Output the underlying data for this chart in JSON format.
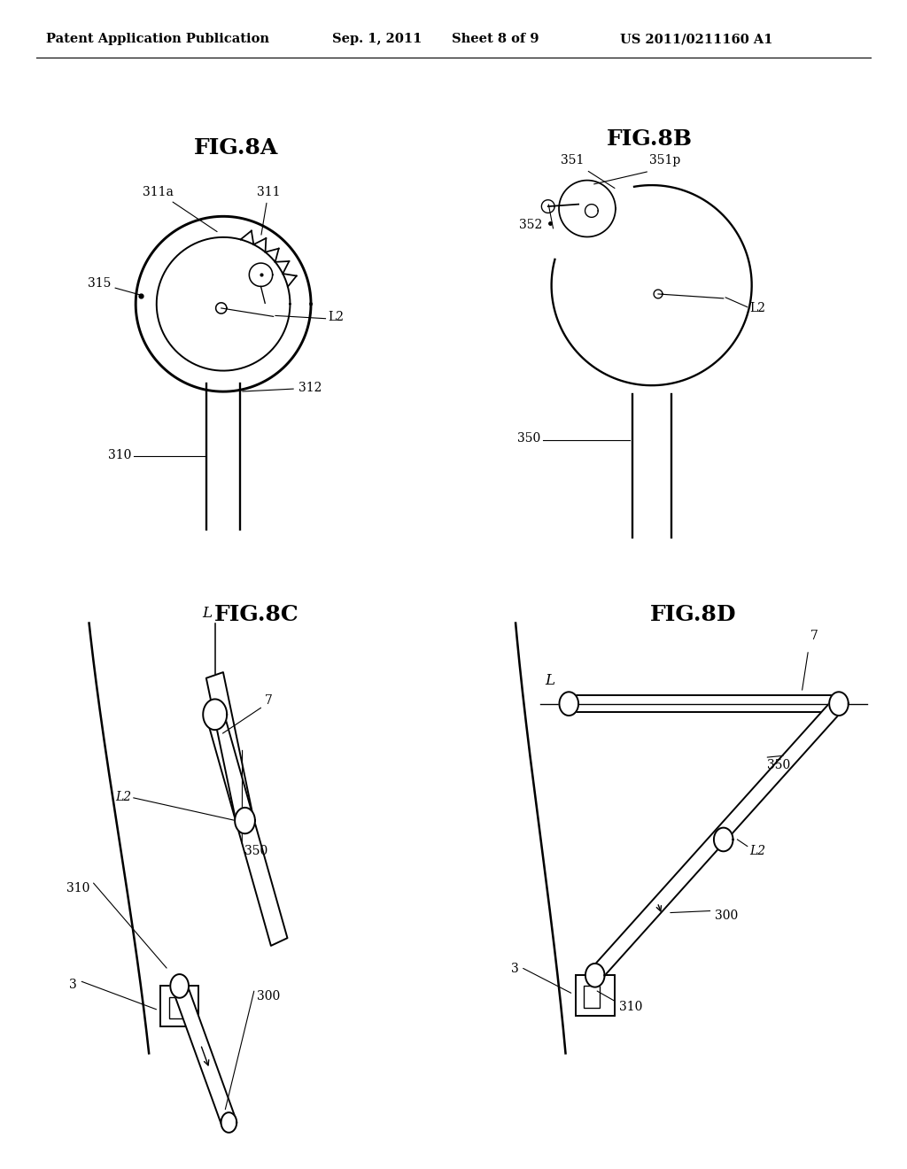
{
  "bg_color": "#ffffff",
  "header_text": "Patent Application Publication",
  "header_date": "Sep. 1, 2011",
  "header_sheet": "Sheet 8 of 9",
  "header_patent": "US 2011/0211160 A1",
  "fig8a_title": "FIG.8A",
  "fig8b_title": "FIG.8B",
  "fig8c_title": "FIG.8C",
  "fig8d_title": "FIG.8D",
  "line_color": "#000000",
  "lw": 1.4,
  "label_fs": 10,
  "title_fs": 18,
  "header_fs": 10.5
}
